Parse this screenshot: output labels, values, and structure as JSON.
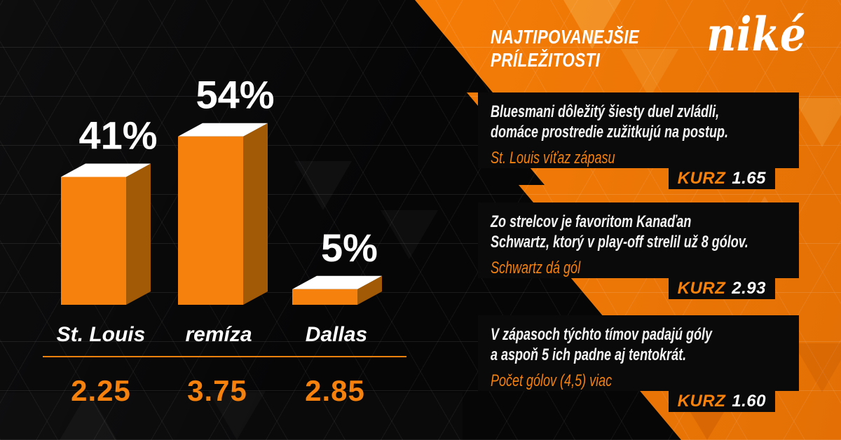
{
  "brand": {
    "logo_text": "niké",
    "accent_color": "#f6820d"
  },
  "header": {
    "line1": "NAJTIPOVANEJŠIE",
    "line2": "PRÍLEŽITOSTI"
  },
  "chart_data": {
    "type": "bar",
    "title": "",
    "categories": [
      "St. Louis",
      "remíza",
      "Dallas"
    ],
    "values": [
      41,
      54,
      5
    ],
    "value_labels": [
      "41%",
      "54%",
      "5%"
    ],
    "odds": [
      "2.25",
      "3.75",
      "2.85"
    ],
    "ylim": [
      0,
      60
    ],
    "grid": false,
    "legend": false,
    "bar_front_color": "#f6820d",
    "bar_side_color": "#a25a06",
    "bar_top_color": "#ffffff",
    "value_label_color": "#ffffff"
  },
  "tips": [
    {
      "desc_line1": "Bluesmani dôležitý šiesty duel zvládli,",
      "desc_line2": "domáce prostredie zužitkujú na postup.",
      "bet": "St. Louis víťaz zápasu",
      "kurz_label": "KURZ",
      "odds": "1.65"
    },
    {
      "desc_line1": "Zo strelcov je favoritom Kanaďan",
      "desc_line2": "Schwartz, ktorý v play-off strelil už 8 gólov.",
      "bet": "Schwartz dá gól",
      "kurz_label": "KURZ",
      "odds": "2.93"
    },
    {
      "desc_line1": "V zápasoch týchto tímov padajú góly",
      "desc_line2": "a aspoň 5 ich padne aj tentokrát.",
      "bet": "Počet gólov (4,5) viac",
      "kurz_label": "KURZ",
      "odds": "1.60"
    }
  ]
}
